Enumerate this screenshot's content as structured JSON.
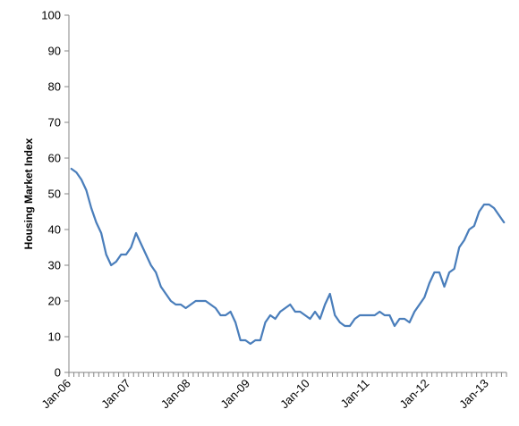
{
  "chart_data": {
    "type": "line",
    "title": "",
    "xlabel": "",
    "ylabel": "Housing Market Index",
    "ylim": [
      0,
      100
    ],
    "yticks": [
      0,
      10,
      20,
      30,
      40,
      50,
      60,
      70,
      80,
      90,
      100
    ],
    "x_tick_labels": [
      "Jan-06",
      "Jan-07",
      "Jan-08",
      "Jan-09",
      "Jan-10",
      "Jan-11",
      "Jan-12",
      "Jan-13"
    ],
    "x_start": "Jan-06",
    "grid": false,
    "legend": "none",
    "line_color": "#4a7ebb",
    "series": [
      {
        "values": [
          57,
          56,
          54,
          51,
          46,
          42,
          39,
          33,
          30,
          31,
          33,
          33,
          35,
          39,
          36,
          33,
          30,
          28,
          24,
          22,
          20,
          19,
          19,
          18,
          19,
          20,
          20,
          20,
          19,
          18,
          16,
          16,
          17,
          14,
          9,
          9,
          8,
          9,
          9,
          14,
          16,
          15,
          17,
          18,
          19,
          17,
          17,
          16,
          15,
          17,
          15,
          19,
          22,
          16,
          14,
          13,
          13,
          15,
          16,
          16,
          16,
          16,
          17,
          16,
          16,
          13,
          15,
          15,
          14,
          17,
          19,
          21,
          25,
          28,
          28,
          24,
          28,
          29,
          35,
          37,
          40,
          41,
          45,
          47,
          47,
          46,
          44,
          42
        ]
      }
    ]
  }
}
